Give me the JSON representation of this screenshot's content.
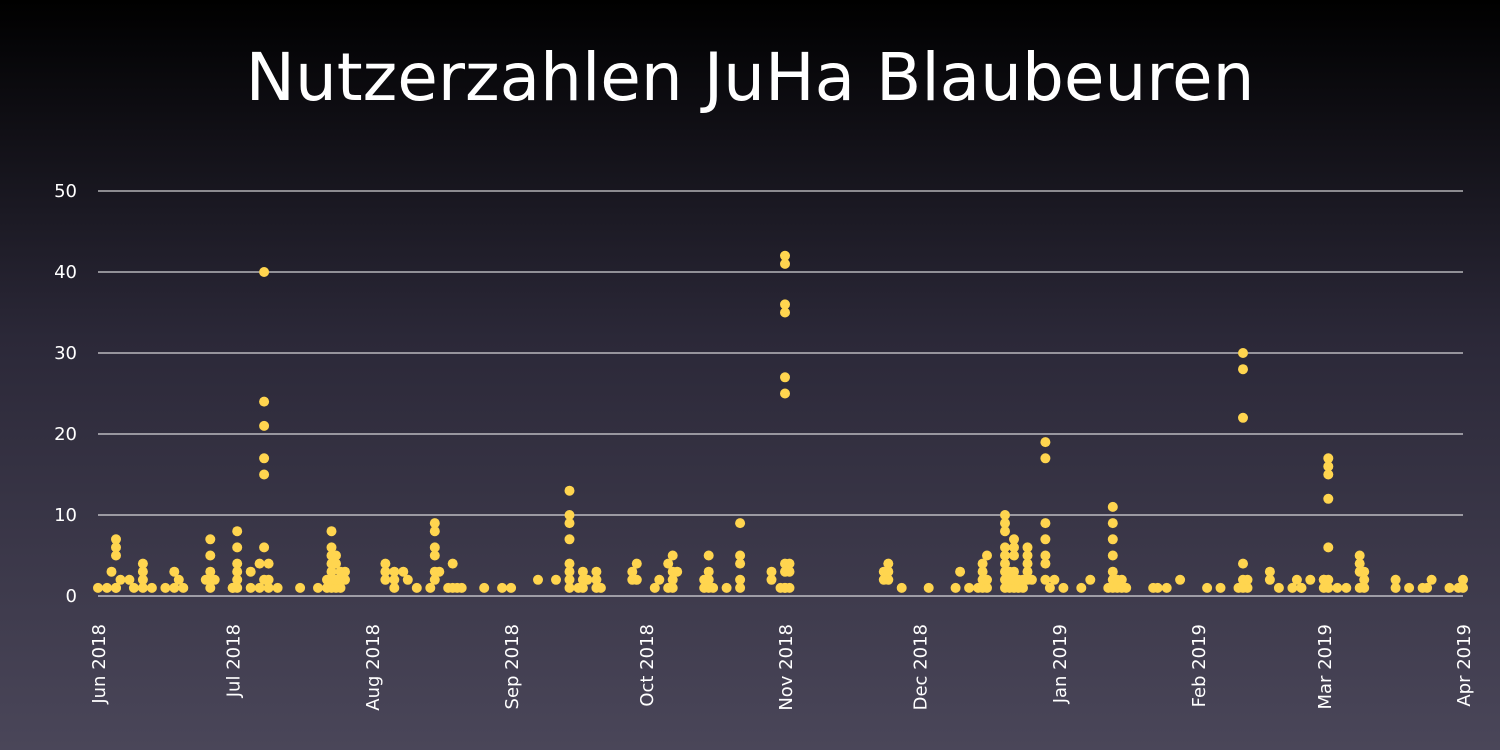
{
  "chart_data": {
    "type": "scatter",
    "title": "Nutzerzahlen JuHa Blaubeuren",
    "xlabel": "",
    "ylabel": "",
    "xlim": [
      "2018-06-01",
      "2019-04-01"
    ],
    "ylim": [
      0,
      50
    ],
    "grid": "horizontal",
    "marker_color": "#ffd54f",
    "y_ticks": [
      0,
      10,
      20,
      30,
      40,
      50
    ],
    "x_ticks": [
      {
        "date": "2018-06-01",
        "label": "Jun 2018"
      },
      {
        "date": "2018-07-01",
        "label": "Jul 2018"
      },
      {
        "date": "2018-08-01",
        "label": "Aug 2018"
      },
      {
        "date": "2018-09-01",
        "label": "Sep 2018"
      },
      {
        "date": "2018-10-01",
        "label": "Oct 2018"
      },
      {
        "date": "2018-11-01",
        "label": "Nov 2018"
      },
      {
        "date": "2018-12-01",
        "label": "Dec 2018"
      },
      {
        "date": "2019-01-01",
        "label": "Jan 2019"
      },
      {
        "date": "2019-02-01",
        "label": "Feb 2019"
      },
      {
        "date": "2019-03-01",
        "label": "Mar 2019"
      },
      {
        "date": "2019-04-01",
        "label": "Apr 2019"
      }
    ],
    "points": [
      [
        "2018-06-01",
        1
      ],
      [
        "2018-06-03",
        1
      ],
      [
        "2018-06-04",
        3
      ],
      [
        "2018-06-05",
        1
      ],
      [
        "2018-06-05",
        1
      ],
      [
        "2018-06-05",
        5
      ],
      [
        "2018-06-05",
        6
      ],
      [
        "2018-06-05",
        7
      ],
      [
        "2018-06-06",
        2
      ],
      [
        "2018-06-08",
        2
      ],
      [
        "2018-06-09",
        1
      ],
      [
        "2018-06-11",
        1
      ],
      [
        "2018-06-11",
        2
      ],
      [
        "2018-06-11",
        3
      ],
      [
        "2018-06-11",
        4
      ],
      [
        "2018-06-13",
        1
      ],
      [
        "2018-06-16",
        1
      ],
      [
        "2018-06-18",
        1
      ],
      [
        "2018-06-18",
        3
      ],
      [
        "2018-06-19",
        2
      ],
      [
        "2018-06-20",
        1
      ],
      [
        "2018-06-25",
        2
      ],
      [
        "2018-06-26",
        1
      ],
      [
        "2018-06-26",
        2
      ],
      [
        "2018-06-26",
        3
      ],
      [
        "2018-06-26",
        5
      ],
      [
        "2018-06-26",
        7
      ],
      [
        "2018-06-27",
        2
      ],
      [
        "2018-07-01",
        1
      ],
      [
        "2018-07-01",
        1
      ],
      [
        "2018-07-02",
        1
      ],
      [
        "2018-07-02",
        2
      ],
      [
        "2018-07-02",
        3
      ],
      [
        "2018-07-02",
        4
      ],
      [
        "2018-07-02",
        6
      ],
      [
        "2018-07-02",
        8
      ],
      [
        "2018-07-05",
        1
      ],
      [
        "2018-07-05",
        3
      ],
      [
        "2018-07-07",
        1
      ],
      [
        "2018-07-07",
        4
      ],
      [
        "2018-07-08",
        2
      ],
      [
        "2018-07-08",
        6
      ],
      [
        "2018-07-08",
        15
      ],
      [
        "2018-07-08",
        17
      ],
      [
        "2018-07-08",
        21
      ],
      [
        "2018-07-08",
        24
      ],
      [
        "2018-07-08",
        40
      ],
      [
        "2018-07-09",
        1
      ],
      [
        "2018-07-09",
        2
      ],
      [
        "2018-07-09",
        4
      ],
      [
        "2018-07-11",
        1
      ],
      [
        "2018-07-16",
        1
      ],
      [
        "2018-07-20",
        1
      ],
      [
        "2018-07-22",
        1
      ],
      [
        "2018-07-22",
        2
      ],
      [
        "2018-07-23",
        1
      ],
      [
        "2018-07-23",
        2
      ],
      [
        "2018-07-23",
        3
      ],
      [
        "2018-07-23",
        4
      ],
      [
        "2018-07-23",
        5
      ],
      [
        "2018-07-23",
        6
      ],
      [
        "2018-07-23",
        8
      ],
      [
        "2018-07-24",
        1
      ],
      [
        "2018-07-24",
        2
      ],
      [
        "2018-07-24",
        4
      ],
      [
        "2018-07-24",
        5
      ],
      [
        "2018-07-25",
        1
      ],
      [
        "2018-07-25",
        2
      ],
      [
        "2018-07-25",
        3
      ],
      [
        "2018-07-26",
        2
      ],
      [
        "2018-07-26",
        3
      ],
      [
        "2018-08-04",
        2
      ],
      [
        "2018-08-04",
        3
      ],
      [
        "2018-08-04",
        4
      ],
      [
        "2018-08-06",
        1
      ],
      [
        "2018-08-06",
        2
      ],
      [
        "2018-08-06",
        3
      ],
      [
        "2018-08-08",
        3
      ],
      [
        "2018-08-09",
        2
      ],
      [
        "2018-08-11",
        1
      ],
      [
        "2018-08-14",
        1
      ],
      [
        "2018-08-15",
        2
      ],
      [
        "2018-08-15",
        3
      ],
      [
        "2018-08-15",
        5
      ],
      [
        "2018-08-15",
        6
      ],
      [
        "2018-08-15",
        8
      ],
      [
        "2018-08-15",
        9
      ],
      [
        "2018-08-16",
        3
      ],
      [
        "2018-08-18",
        1
      ],
      [
        "2018-08-19",
        1
      ],
      [
        "2018-08-19",
        4
      ],
      [
        "2018-08-20",
        1
      ],
      [
        "2018-08-21",
        1
      ],
      [
        "2018-08-26",
        1
      ],
      [
        "2018-08-30",
        1
      ],
      [
        "2018-09-01",
        1
      ],
      [
        "2018-09-07",
        2
      ],
      [
        "2018-09-11",
        2
      ],
      [
        "2018-09-14",
        1
      ],
      [
        "2018-09-14",
        2
      ],
      [
        "2018-09-14",
        3
      ],
      [
        "2018-09-14",
        4
      ],
      [
        "2018-09-14",
        7
      ],
      [
        "2018-09-14",
        9
      ],
      [
        "2018-09-14",
        10
      ],
      [
        "2018-09-14",
        13
      ],
      [
        "2018-09-16",
        1
      ],
      [
        "2018-09-17",
        1
      ],
      [
        "2018-09-17",
        2
      ],
      [
        "2018-09-17",
        3
      ],
      [
        "2018-09-18",
        2
      ],
      [
        "2018-09-20",
        1
      ],
      [
        "2018-09-20",
        2
      ],
      [
        "2018-09-20",
        3
      ],
      [
        "2018-09-21",
        1
      ],
      [
        "2018-09-28",
        2
      ],
      [
        "2018-09-28",
        3
      ],
      [
        "2018-09-29",
        2
      ],
      [
        "2018-09-29",
        4
      ],
      [
        "2018-10-03",
        1
      ],
      [
        "2018-10-04",
        2
      ],
      [
        "2018-10-06",
        1
      ],
      [
        "2018-10-06",
        4
      ],
      [
        "2018-10-07",
        1
      ],
      [
        "2018-10-07",
        2
      ],
      [
        "2018-10-07",
        3
      ],
      [
        "2018-10-07",
        5
      ],
      [
        "2018-10-08",
        3
      ],
      [
        "2018-10-14",
        1
      ],
      [
        "2018-10-14",
        2
      ],
      [
        "2018-10-15",
        1
      ],
      [
        "2018-10-15",
        2
      ],
      [
        "2018-10-15",
        3
      ],
      [
        "2018-10-15",
        5
      ],
      [
        "2018-10-16",
        1
      ],
      [
        "2018-10-19",
        1
      ],
      [
        "2018-10-22",
        1
      ],
      [
        "2018-10-22",
        2
      ],
      [
        "2018-10-22",
        4
      ],
      [
        "2018-10-22",
        5
      ],
      [
        "2018-10-22",
        9
      ],
      [
        "2018-10-29",
        2
      ],
      [
        "2018-10-29",
        3
      ],
      [
        "2018-10-31",
        1
      ],
      [
        "2018-11-01",
        1
      ],
      [
        "2018-11-01",
        1
      ],
      [
        "2018-11-01",
        3
      ],
      [
        "2018-11-01",
        4
      ],
      [
        "2018-11-01",
        25
      ],
      [
        "2018-11-01",
        27
      ],
      [
        "2018-11-01",
        35
      ],
      [
        "2018-11-01",
        36
      ],
      [
        "2018-11-01",
        41
      ],
      [
        "2018-11-01",
        42
      ],
      [
        "2018-11-02",
        1
      ],
      [
        "2018-11-02",
        3
      ],
      [
        "2018-11-02",
        4
      ],
      [
        "2018-11-23",
        2
      ],
      [
        "2018-11-23",
        3
      ],
      [
        "2018-11-24",
        2
      ],
      [
        "2018-11-24",
        3
      ],
      [
        "2018-11-24",
        4
      ],
      [
        "2018-11-27",
        1
      ],
      [
        "2018-12-03",
        1
      ],
      [
        "2018-12-09",
        1
      ],
      [
        "2018-12-10",
        3
      ],
      [
        "2018-12-12",
        1
      ],
      [
        "2018-12-14",
        1
      ],
      [
        "2018-12-15",
        1
      ],
      [
        "2018-12-15",
        2
      ],
      [
        "2018-12-15",
        3
      ],
      [
        "2018-12-15",
        4
      ],
      [
        "2018-12-16",
        1
      ],
      [
        "2018-12-16",
        2
      ],
      [
        "2018-12-16",
        5
      ],
      [
        "2018-12-20",
        1
      ],
      [
        "2018-12-20",
        2
      ],
      [
        "2018-12-20",
        3
      ],
      [
        "2018-12-20",
        4
      ],
      [
        "2018-12-20",
        5
      ],
      [
        "2018-12-20",
        6
      ],
      [
        "2018-12-20",
        8
      ],
      [
        "2018-12-20",
        9
      ],
      [
        "2018-12-20",
        10
      ],
      [
        "2018-12-21",
        1
      ],
      [
        "2018-12-21",
        2
      ],
      [
        "2018-12-21",
        3
      ],
      [
        "2018-12-22",
        1
      ],
      [
        "2018-12-22",
        2
      ],
      [
        "2018-12-22",
        3
      ],
      [
        "2018-12-22",
        5
      ],
      [
        "2018-12-22",
        6
      ],
      [
        "2018-12-22",
        7
      ],
      [
        "2018-12-23",
        1
      ],
      [
        "2018-12-23",
        2
      ],
      [
        "2018-12-24",
        1
      ],
      [
        "2018-12-24",
        2
      ],
      [
        "2018-12-25",
        2
      ],
      [
        "2018-12-25",
        3
      ],
      [
        "2018-12-25",
        4
      ],
      [
        "2018-12-25",
        5
      ],
      [
        "2018-12-25",
        6
      ],
      [
        "2018-12-26",
        2
      ],
      [
        "2018-12-29",
        2
      ],
      [
        "2018-12-29",
        4
      ],
      [
        "2018-12-29",
        5
      ],
      [
        "2018-12-29",
        7
      ],
      [
        "2018-12-29",
        9
      ],
      [
        "2018-12-29",
        17
      ],
      [
        "2018-12-29",
        19
      ],
      [
        "2018-12-30",
        1
      ],
      [
        "2018-12-31",
        2
      ],
      [
        "2019-01-02",
        1
      ],
      [
        "2019-01-06",
        1
      ],
      [
        "2019-01-08",
        2
      ],
      [
        "2019-01-12",
        1
      ],
      [
        "2019-01-13",
        1
      ],
      [
        "2019-01-13",
        2
      ],
      [
        "2019-01-13",
        3
      ],
      [
        "2019-01-13",
        5
      ],
      [
        "2019-01-13",
        7
      ],
      [
        "2019-01-13",
        9
      ],
      [
        "2019-01-13",
        11
      ],
      [
        "2019-01-14",
        1
      ],
      [
        "2019-01-14",
        2
      ],
      [
        "2019-01-15",
        1
      ],
      [
        "2019-01-15",
        2
      ],
      [
        "2019-01-16",
        1
      ],
      [
        "2019-01-22",
        1
      ],
      [
        "2019-01-23",
        1
      ],
      [
        "2019-01-25",
        1
      ],
      [
        "2019-01-28",
        2
      ],
      [
        "2019-02-03",
        1
      ],
      [
        "2019-02-06",
        1
      ],
      [
        "2019-02-10",
        1
      ],
      [
        "2019-02-11",
        1
      ],
      [
        "2019-02-11",
        2
      ],
      [
        "2019-02-11",
        4
      ],
      [
        "2019-02-11",
        22
      ],
      [
        "2019-02-11",
        28
      ],
      [
        "2019-02-11",
        30
      ],
      [
        "2019-02-12",
        1
      ],
      [
        "2019-02-12",
        2
      ],
      [
        "2019-02-17",
        2
      ],
      [
        "2019-02-17",
        3
      ],
      [
        "2019-02-19",
        1
      ],
      [
        "2019-02-22",
        1
      ],
      [
        "2019-02-23",
        2
      ],
      [
        "2019-02-24",
        1
      ],
      [
        "2019-02-24",
        1
      ],
      [
        "2019-02-26",
        2
      ],
      [
        "2019-03-01",
        1
      ],
      [
        "2019-03-01",
        2
      ],
      [
        "2019-03-01",
        2
      ],
      [
        "2019-03-02",
        1
      ],
      [
        "2019-03-02",
        2
      ],
      [
        "2019-03-02",
        6
      ],
      [
        "2019-03-02",
        12
      ],
      [
        "2019-03-02",
        15
      ],
      [
        "2019-03-02",
        16
      ],
      [
        "2019-03-02",
        17
      ],
      [
        "2019-03-04",
        1
      ],
      [
        "2019-03-06",
        1
      ],
      [
        "2019-03-09",
        1
      ],
      [
        "2019-03-09",
        3
      ],
      [
        "2019-03-09",
        4
      ],
      [
        "2019-03-09",
        5
      ],
      [
        "2019-03-10",
        1
      ],
      [
        "2019-03-10",
        2
      ],
      [
        "2019-03-10",
        3
      ],
      [
        "2019-03-17",
        1
      ],
      [
        "2019-03-17",
        2
      ],
      [
        "2019-03-20",
        1
      ],
      [
        "2019-03-23",
        1
      ],
      [
        "2019-03-24",
        1
      ],
      [
        "2019-03-25",
        2
      ],
      [
        "2019-03-29",
        1
      ],
      [
        "2019-03-31",
        1
      ],
      [
        "2019-04-01",
        1
      ],
      [
        "2019-04-01",
        2
      ]
    ]
  }
}
